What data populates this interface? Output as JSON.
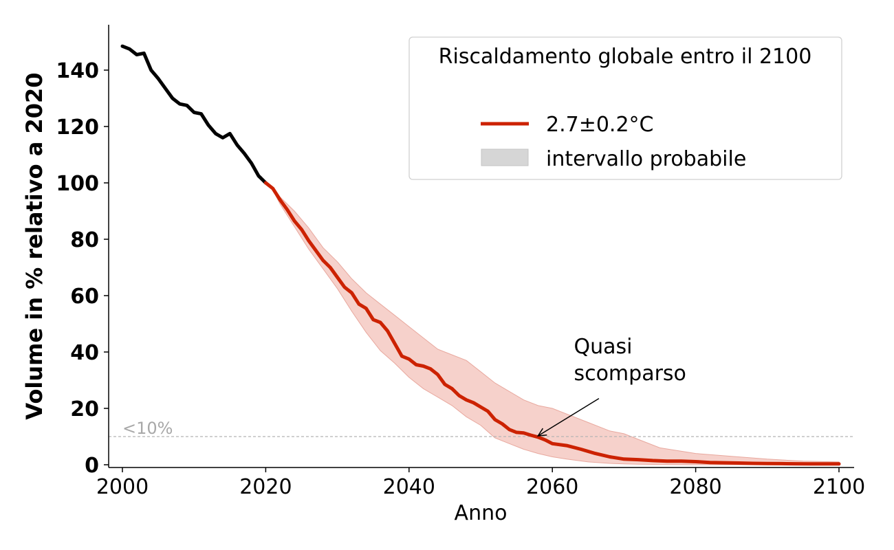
{
  "chart_data": {
    "type": "line",
    "xlabel": "Anno",
    "ylabel": "Volume in % relativo a 2020",
    "xlim": [
      1998,
      2102
    ],
    "ylim": [
      0,
      156
    ],
    "xticks": [
      2000,
      2020,
      2040,
      2060,
      2080,
      2100
    ],
    "yticks": [
      0,
      20,
      40,
      60,
      80,
      100,
      120,
      140
    ],
    "grid": false,
    "legend": {
      "title": "Riscaldamento globale entro il 2100",
      "placement": "top-right",
      "entries": [
        {
          "label": "2.7±0.2°C",
          "kind": "line",
          "color": "#cc2200"
        },
        {
          "label": "intervallo probabile",
          "kind": "patch",
          "color": "#d6d6d6"
        }
      ]
    },
    "threshold": {
      "y": 10,
      "label": "<10%"
    },
    "annotation": {
      "text_lines": [
        "Quasi",
        "scomparso"
      ],
      "target": [
        2058,
        10
      ],
      "text_at": [
        2063,
        29
      ]
    },
    "series": [
      {
        "role": "observed",
        "color": "#000000",
        "x": [
          2000,
          2001,
          2002,
          2003,
          2004,
          2005,
          2006,
          2007,
          2008,
          2009,
          2010,
          2011,
          2012,
          2013,
          2014,
          2015,
          2016,
          2017,
          2018,
          2019,
          2020
        ],
        "y": [
          148.5,
          147.5,
          145.5,
          146,
          140,
          137,
          133.5,
          130,
          128,
          127.5,
          125,
          124.5,
          120.5,
          117.5,
          116,
          117.5,
          113.5,
          110.5,
          107,
          102.5,
          100
        ]
      },
      {
        "name": "2.7±0.2°C",
        "role": "projection",
        "color": "#cc2200",
        "x": [
          2020,
          2021,
          2022,
          2023,
          2024,
          2025,
          2026,
          2027,
          2028,
          2029,
          2030,
          2031,
          2032,
          2033,
          2034,
          2035,
          2036,
          2037,
          2038,
          2039,
          2040,
          2041,
          2042,
          2043,
          2044,
          2045,
          2046,
          2047,
          2048,
          2049,
          2050,
          2051,
          2052,
          2053,
          2054,
          2055,
          2056,
          2057,
          2058,
          2059,
          2060,
          2062,
          2064,
          2066,
          2068,
          2070,
          2072,
          2074,
          2076,
          2078,
          2080,
          2082,
          2084,
          2086,
          2088,
          2090,
          2092,
          2094,
          2096,
          2098,
          2100
        ],
        "y": [
          100,
          98,
          94,
          90.5,
          86.5,
          83.5,
          79.5,
          76,
          72.5,
          70,
          66.5,
          63,
          61,
          57,
          55.5,
          51.5,
          50.5,
          47.5,
          43,
          38.5,
          37.5,
          35.5,
          35,
          34,
          32,
          28.5,
          27,
          24.5,
          23,
          22,
          20.5,
          19,
          16,
          14.5,
          12.5,
          11.5,
          11.3,
          10.5,
          9.8,
          8.8,
          7.5,
          6.8,
          5.5,
          4,
          2.8,
          2,
          1.8,
          1.5,
          1.3,
          1.3,
          1.1,
          0.8,
          0.7,
          0.6,
          0.5,
          0.45,
          0.4,
          0.35,
          0.3,
          0.3,
          0.3
        ]
      }
    ],
    "band": {
      "name": "intervallo probabile",
      "color": "#f5c9c2",
      "edge_color": "#e8a89e",
      "x": [
        2021,
        2022,
        2024,
        2026,
        2028,
        2030,
        2032,
        2034,
        2036,
        2038,
        2040,
        2042,
        2044,
        2046,
        2048,
        2050,
        2052,
        2054,
        2056,
        2058,
        2060,
        2062,
        2065,
        2068,
        2070,
        2072,
        2075,
        2080,
        2085,
        2090,
        2095,
        2100
      ],
      "upper": [
        98.5,
        95,
        90,
        84,
        77,
        72,
        66,
        61,
        57,
        53,
        49,
        45,
        41,
        39,
        37,
        33,
        29,
        26,
        23,
        21,
        20,
        18,
        15,
        12,
        11,
        9,
        6,
        4,
        3,
        2,
        1.3,
        1
      ],
      "lower": [
        97.5,
        92.5,
        84.5,
        76.5,
        69.5,
        62.5,
        54.5,
        47,
        40.5,
        36,
        31,
        27,
        24,
        21,
        17,
        14,
        9.5,
        7.5,
        5.5,
        4,
        2.8,
        2,
        1,
        0.5,
        0.3,
        0.2,
        0.1,
        0,
        0,
        0,
        0,
        0
      ]
    }
  }
}
